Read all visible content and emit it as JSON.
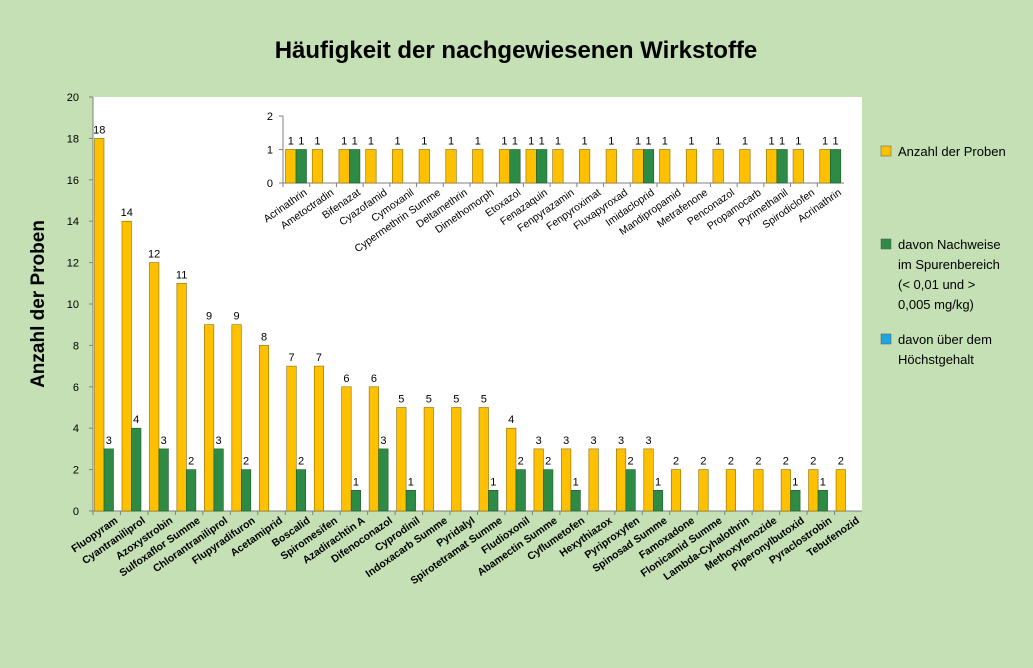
{
  "chart_data": [
    {
      "type": "bar",
      "title": "Häufigkeit der nachgewiesenen Wirkstoffe",
      "ylabel": "Anzahl der Proben",
      "ylim": [
        0,
        20
      ],
      "yticks": [
        "0",
        "2",
        "4",
        "6",
        "8",
        "10",
        "12",
        "14",
        "16",
        "18",
        "20"
      ],
      "grid": false,
      "legend_position": "right",
      "categories": [
        "Fluopyram",
        "Cyantraniliprol",
        "Azoxystrobin",
        "Sulfoxaflor Summe",
        "Chlorantraniliprol",
        "Flupyradifuron",
        "Acetamiprid",
        "Boscalid",
        "Spiromesifen",
        "Azadirachtin A",
        "Difenoconazol",
        "Cyprodinil",
        "Indoxacarb Summe",
        "Pyridalyl",
        "Spirotetramat Summe",
        "Fludioxonil",
        "Abamectin Summe",
        "Cyflumetofen",
        "Hexythiazox",
        "Pyriproxyfen",
        "Spinosad Summe",
        "Famoxadone",
        "Flonicamid Summe",
        "Lambda-Cyhalothrin",
        "Methoxyfenozide",
        "Piperonylbutoxid",
        "Pyraclostrobin",
        "Tebufenozid"
      ],
      "series": [
        {
          "name": "Anzahl der Proben",
          "color": "#ffc000",
          "values": [
            18,
            14,
            12,
            11,
            9,
            9,
            8,
            7,
            7,
            6,
            6,
            5,
            5,
            5,
            5,
            4,
            3,
            3,
            3,
            3,
            3,
            2,
            2,
            2,
            2,
            2,
            2,
            2
          ]
        },
        {
          "name": "davon Nachweise im Spurenbereich  (< 0,01 und > 0,005 mg/kg)",
          "color": "#2e8b45",
          "values": [
            3,
            4,
            3,
            2,
            3,
            2,
            null,
            2,
            null,
            1,
            3,
            1,
            null,
            null,
            1,
            2,
            2,
            1,
            null,
            2,
            1,
            null,
            null,
            null,
            null,
            1,
            1,
            null
          ]
        },
        {
          "name": "davon über dem Höchstgehalt",
          "color": "#1fa6e0",
          "values": [
            null,
            null,
            null,
            null,
            null,
            null,
            null,
            null,
            null,
            null,
            null,
            null,
            null,
            null,
            null,
            null,
            null,
            null,
            null,
            null,
            null,
            null,
            null,
            null,
            null,
            null,
            null,
            null
          ]
        }
      ]
    },
    {
      "type": "bar",
      "title": "",
      "ylim": [
        0,
        2
      ],
      "yticks": [
        "0",
        "1",
        "2"
      ],
      "categories": [
        "Acrinathrin",
        "Ametoctradin",
        "Bifenazat",
        "Cyazofamid",
        "Cymoxanil",
        "Cypermethrin Summe",
        "Deltamethrin",
        "Dimethomorph",
        "Etoxazol",
        "Fenazaquin",
        "Fenpyrazamin",
        "Fenpyroximat",
        "Fluxapyroxad",
        "Imidacloprid",
        "Mandipropamid",
        "Metrafenone",
        "Penconazol",
        "Propamocarb",
        "Pyrimethanil",
        "Spirodiclofen",
        "Acrinathrin"
      ],
      "series": [
        {
          "name": "Anzahl der Proben",
          "color": "#ffc000",
          "values": [
            1,
            1,
            1,
            1,
            1,
            1,
            1,
            1,
            1,
            1,
            1,
            1,
            1,
            1,
            1,
            1,
            1,
            1,
            1,
            1,
            1
          ]
        },
        {
          "name": "davon Nachweise im Spurenbereich  (< 0,01 und > 0,005 mg/kg)",
          "color": "#2e8b45",
          "values": [
            1,
            null,
            1,
            null,
            null,
            null,
            null,
            null,
            1,
            1,
            null,
            null,
            null,
            1,
            null,
            null,
            null,
            null,
            1,
            null,
            1
          ]
        }
      ]
    }
  ],
  "legend": {
    "items": [
      {
        "lines": [
          "Anzahl der Proben"
        ],
        "color": "#ffc000"
      },
      {
        "lines": [
          "davon Nachweise",
          "im Spurenbereich",
          " (< 0,01 und >",
          "0,005 mg/kg)"
        ],
        "color": "#2e8b45"
      },
      {
        "lines": [
          "davon über dem",
          "Höchstgehalt"
        ],
        "color": "#1fa6e0"
      }
    ]
  }
}
